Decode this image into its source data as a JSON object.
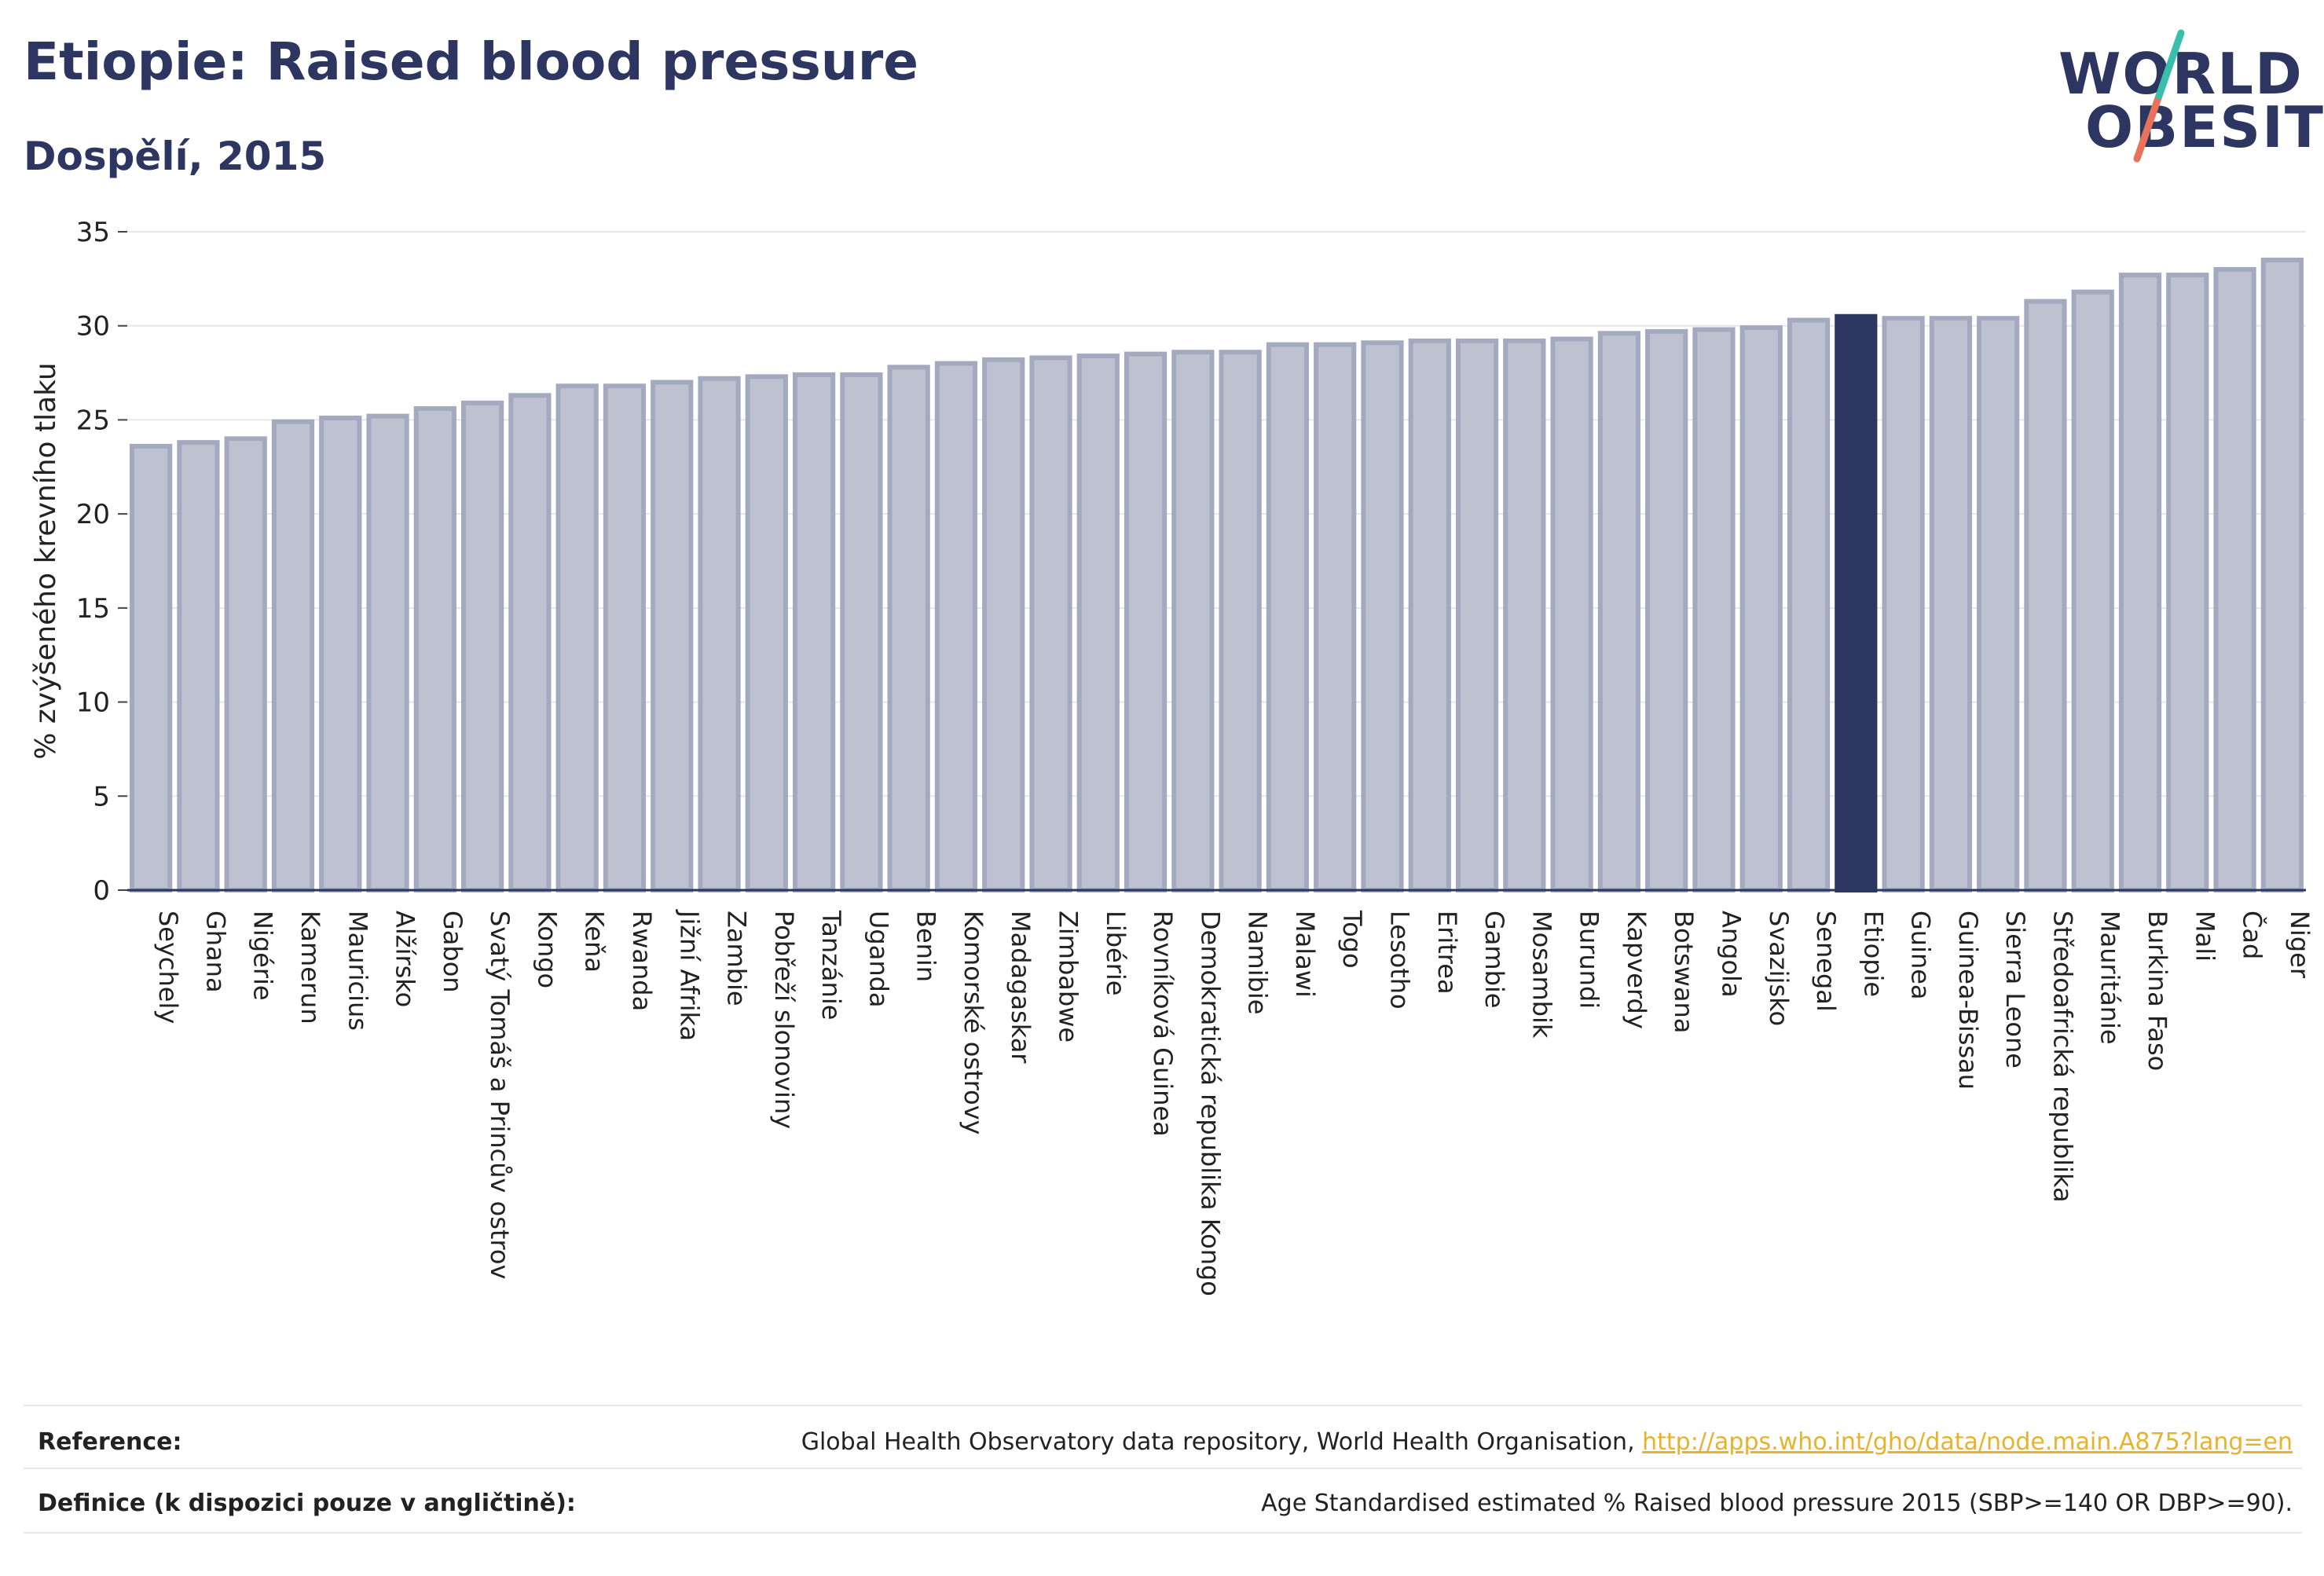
{
  "header": {
    "title": "Etiopie: Raised blood pressure",
    "subtitle": "Dospělí, 2015"
  },
  "logo": {
    "line1": "WORLD",
    "line2": "OBESITY"
  },
  "colors": {
    "bar_fill": "#bec2d0",
    "bar_stroke": "#a3a9bf",
    "highlight": "#2d3561",
    "text": "#2d3561",
    "grid": "#e6e8f0",
    "link": "#e8b32c"
  },
  "chart_data": {
    "type": "bar",
    "ylabel": "% zvýšeného krevního tlaku",
    "ylim": [
      0,
      35
    ],
    "yticks": [
      0,
      5,
      10,
      15,
      20,
      25,
      30,
      35
    ],
    "grid": true,
    "highlight": "Etiopie",
    "categories": [
      "Seychely",
      "Ghana",
      "Nigérie",
      "Kamerun",
      "Mauricius",
      "Alžírsko",
      "Gabon",
      "Svatý Tomáš a Princův ostrov",
      "Kongo",
      "Keňa",
      "Rwanda",
      "Jižní Afrika",
      "Zambie",
      "Pobřeží slonoviny",
      "Tanzánie",
      "Uganda",
      "Benin",
      "Komorské ostrovy",
      "Madagaskar",
      "Zimbabwe",
      "Libérie",
      "Rovníková Guinea",
      "Demokratická republika Kongo",
      "Namibie",
      "Malawi",
      "Togo",
      "Lesotho",
      "Eritrea",
      "Gambie",
      "Mosambik",
      "Burundi",
      "Kapverdy",
      "Botswana",
      "Angola",
      "Svazijsko",
      "Senegal",
      "Etiopie",
      "Guinea",
      "Guinea-Bissau",
      "Sierra Leone",
      "Středoafrická republika",
      "Mauritánie",
      "Burkina Faso",
      "Mali",
      "Čad",
      "Niger"
    ],
    "values": [
      23.6,
      23.8,
      24.0,
      24.9,
      25.1,
      25.2,
      25.6,
      25.9,
      26.3,
      26.8,
      26.8,
      27.0,
      27.2,
      27.3,
      27.4,
      27.4,
      27.8,
      28.0,
      28.2,
      28.3,
      28.4,
      28.5,
      28.6,
      28.6,
      29.0,
      29.0,
      29.1,
      29.2,
      29.2,
      29.2,
      29.3,
      29.6,
      29.7,
      29.8,
      29.9,
      30.3,
      30.5,
      30.4,
      30.4,
      30.4,
      31.3,
      31.8,
      32.7,
      32.7,
      33.0,
      33.5
    ]
  },
  "footer": {
    "reference_label": "Reference:",
    "reference_text": "Global Health Observatory data repository, World Health Organisation, ",
    "reference_link": "http://apps.who.int/gho/data/node.main.A875?lang=en",
    "definition_label": "Definice (k dispozici pouze v angličtině):",
    "definition_text": "Age Standardised estimated % Raised blood pressure 2015 (SBP>=140 OR DBP>=90)."
  }
}
